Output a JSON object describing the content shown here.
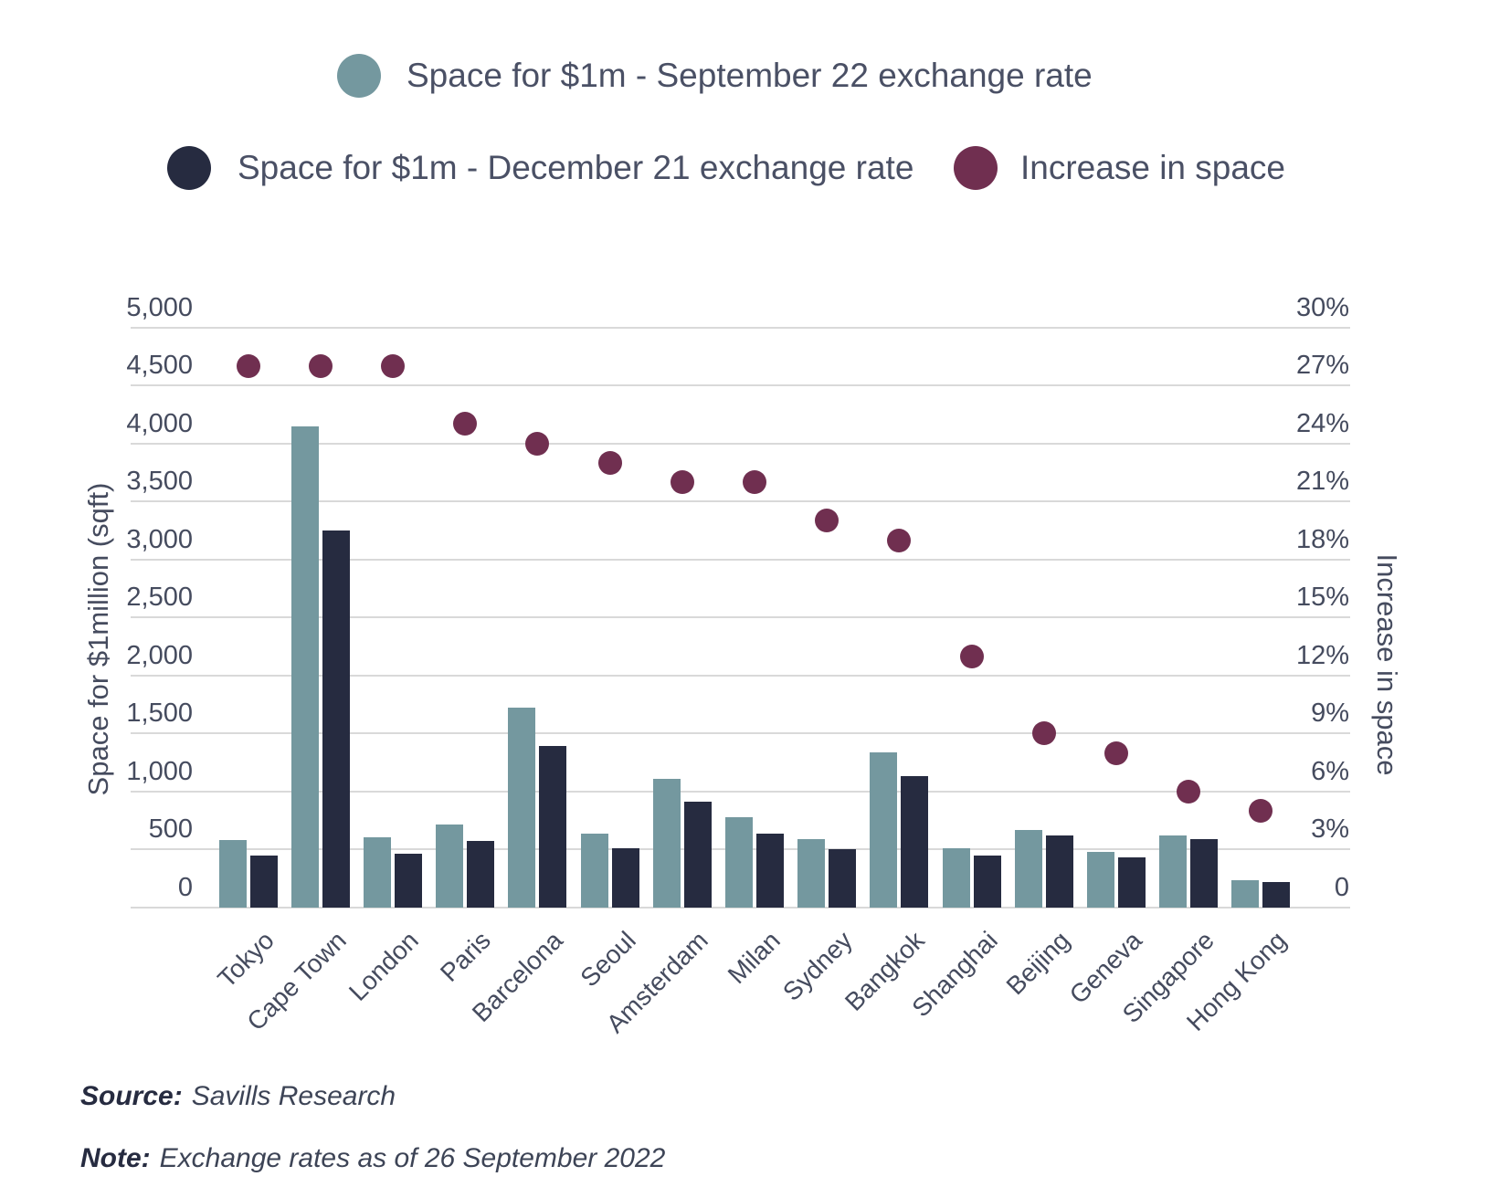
{
  "legend": {
    "items": [
      {
        "id": "sep22",
        "label": "Space for $1m - September 22 exchange rate",
        "color": "#74989f"
      },
      {
        "id": "dec21",
        "label": "Space for $1m - December 21 exchange rate",
        "color": "#262b40"
      },
      {
        "id": "increase",
        "label": "Increase in space",
        "color": "#702f50"
      }
    ]
  },
  "chart_data": {
    "type": "bar",
    "categories": [
      "Tokyo",
      "Cape Town",
      "London",
      "Paris",
      "Barcelona",
      "Seoul",
      "Amsterdam",
      "Milan",
      "Sydney",
      "Bangkok",
      "Shanghai",
      "Beijing",
      "Geneva",
      "Singapore",
      "Hong Kong"
    ],
    "series": [
      {
        "name": "Space for $1m - September 22 exchange rate",
        "type": "bar",
        "axis": "left",
        "color": "#74989f",
        "values": [
          580,
          4150,
          605,
          715,
          1725,
          640,
          1110,
          780,
          590,
          1340,
          515,
          665,
          480,
          620,
          235
        ]
      },
      {
        "name": "Space for $1m - December 21 exchange rate",
        "type": "bar",
        "axis": "left",
        "color": "#262b40",
        "values": [
          450,
          3250,
          465,
          575,
          1395,
          515,
          910,
          640,
          500,
          1135,
          445,
          620,
          435,
          590,
          220
        ]
      },
      {
        "name": "Increase in space",
        "type": "scatter",
        "axis": "right",
        "color": "#702f50",
        "values": [
          28,
          28,
          28,
          25,
          24,
          23,
          22,
          22,
          20,
          19,
          13,
          9,
          8,
          6,
          5
        ]
      }
    ],
    "left_axis": {
      "title": "Space for $1million (sqft)",
      "min": 0,
      "max": 5000,
      "step": 500,
      "tick_labels": [
        "0",
        "500",
        "1,000",
        "1,500",
        "2,000",
        "2,500",
        "3,000",
        "3,500",
        "4,000",
        "4,500",
        "5,000"
      ]
    },
    "right_axis": {
      "title": "Increase in space",
      "min": 0,
      "max": 30,
      "step": 3,
      "tick_labels": [
        "0",
        "3%",
        "6%",
        "9%",
        "12%",
        "15%",
        "18%",
        "21%",
        "24%",
        "27%",
        "30%"
      ]
    },
    "grid": true,
    "legend_position": "top"
  },
  "footer": {
    "source_label": "Source:",
    "source_text": "Savills Research",
    "note_label": "Note:",
    "note_text": "Exchange rates as of 26 September 2022"
  }
}
